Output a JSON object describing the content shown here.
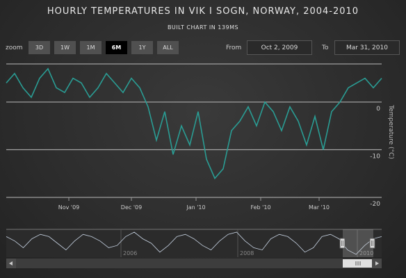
{
  "title": "HOURLY TEMPERATURES IN VIK I SOGN, NORWAY, 2004-2010",
  "subtitle": "BUILT CHART IN 139MS",
  "range_selector": {
    "zoom_label": "zoom",
    "buttons": [
      "3D",
      "1W",
      "1M",
      "6M",
      "1Y",
      "ALL"
    ],
    "selected": "6M",
    "from_label": "From",
    "from_value": "Oct 2, 2009",
    "to_label": "To",
    "to_value": "Mar 31, 2010"
  },
  "colors": {
    "series": "#2a9d94",
    "navigator_line": "#c7d3e3",
    "grid": "#bbbbbb"
  },
  "chart_data": {
    "type": "line",
    "title": "HOURLY TEMPERATURES IN VIK I SOGN, NORWAY, 2004-2010",
    "ylabel": "Temperature (°C)",
    "ylim": [
      -20,
      8
    ],
    "yticks": [
      0,
      -10,
      -20
    ],
    "xticks": [
      "Nov '09",
      "Dec '09",
      "Jan '10",
      "Feb '10",
      "Mar '10"
    ],
    "x_start": "2009-10-02",
    "x_end": "2010-03-31",
    "grid": true,
    "series": [
      {
        "name": "Temperature",
        "x": [
          "2009-10-02",
          "2009-10-06",
          "2009-10-10",
          "2009-10-14",
          "2009-10-18",
          "2009-10-22",
          "2009-10-26",
          "2009-10-30",
          "2009-11-03",
          "2009-11-07",
          "2009-11-11",
          "2009-11-15",
          "2009-11-19",
          "2009-11-23",
          "2009-11-27",
          "2009-12-01",
          "2009-12-05",
          "2009-12-09",
          "2009-12-13",
          "2009-12-17",
          "2009-12-21",
          "2009-12-25",
          "2009-12-29",
          "2010-01-02",
          "2010-01-06",
          "2010-01-10",
          "2010-01-14",
          "2010-01-18",
          "2010-01-22",
          "2010-01-26",
          "2010-01-30",
          "2010-02-03",
          "2010-02-07",
          "2010-02-11",
          "2010-02-15",
          "2010-02-19",
          "2010-02-23",
          "2010-02-27",
          "2010-03-03",
          "2010-03-07",
          "2010-03-11",
          "2010-03-15",
          "2010-03-19",
          "2010-03-23",
          "2010-03-27",
          "2010-03-31"
        ],
        "values": [
          4,
          6,
          3,
          1,
          5,
          7,
          3,
          2,
          5,
          4,
          1,
          3,
          6,
          4,
          2,
          5,
          3,
          -1,
          -8,
          -2,
          -11,
          -5,
          -9,
          -2,
          -12,
          -16,
          -14,
          -6,
          -4,
          -1,
          -5,
          0,
          -2,
          -6,
          -1,
          -4,
          -9,
          -3,
          -10,
          -2,
          0,
          3,
          4,
          5,
          3,
          5
        ]
      }
    ],
    "navigator": {
      "xticks": [
        "2006",
        "2008",
        "2010"
      ],
      "values": [
        3,
        1,
        -2,
        2,
        4,
        3,
        0,
        -3,
        1,
        4,
        3,
        1,
        -2,
        -1,
        3,
        5,
        2,
        0,
        -4,
        -1,
        3,
        4,
        2,
        -1,
        -3,
        1,
        4,
        5,
        1,
        -2,
        -3,
        2,
        4,
        3,
        0,
        -4,
        -2,
        3,
        4,
        2,
        -3,
        -5,
        -1,
        2,
        3
      ]
    }
  }
}
